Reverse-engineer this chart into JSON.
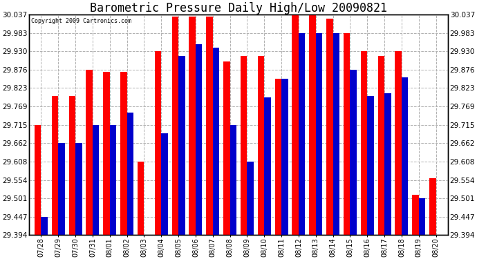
{
  "title": "Barometric Pressure Daily High/Low 20090821",
  "copyright": "Copyright 2009 Cartronics.com",
  "dates": [
    "07/28",
    "07/29",
    "07/30",
    "07/31",
    "08/01",
    "08/02",
    "08/03",
    "08/04",
    "08/05",
    "08/06",
    "08/07",
    "08/08",
    "08/09",
    "08/10",
    "08/11",
    "08/12",
    "08/13",
    "08/14",
    "08/15",
    "08/16",
    "08/17",
    "08/18",
    "08/19",
    "08/20"
  ],
  "highs": [
    29.715,
    29.8,
    29.8,
    29.876,
    29.869,
    29.869,
    29.608,
    29.93,
    30.03,
    30.03,
    30.03,
    29.9,
    29.916,
    29.916,
    29.85,
    30.037,
    30.037,
    30.025,
    29.983,
    29.93,
    29.916,
    29.93,
    29.51,
    29.56
  ],
  "lows": [
    29.447,
    29.662,
    29.662,
    29.715,
    29.715,
    29.75,
    29.394,
    29.69,
    29.916,
    29.95,
    29.94,
    29.715,
    29.608,
    29.795,
    29.85,
    29.983,
    29.983,
    29.983,
    29.876,
    29.8,
    29.808,
    29.854,
    29.501,
    29.394
  ],
  "high_color": "#ff0000",
  "low_color": "#0000cc",
  "bg_color": "#ffffff",
  "grid_color": "#b0b0b0",
  "yticks": [
    29.394,
    29.447,
    29.501,
    29.554,
    29.608,
    29.662,
    29.715,
    29.769,
    29.823,
    29.876,
    29.93,
    29.983,
    30.037
  ],
  "ymin": 29.394,
  "ymax": 30.037,
  "bar_width": 0.38,
  "title_fontsize": 12,
  "tick_fontsize": 7,
  "ylabel_fontsize": 7.5
}
